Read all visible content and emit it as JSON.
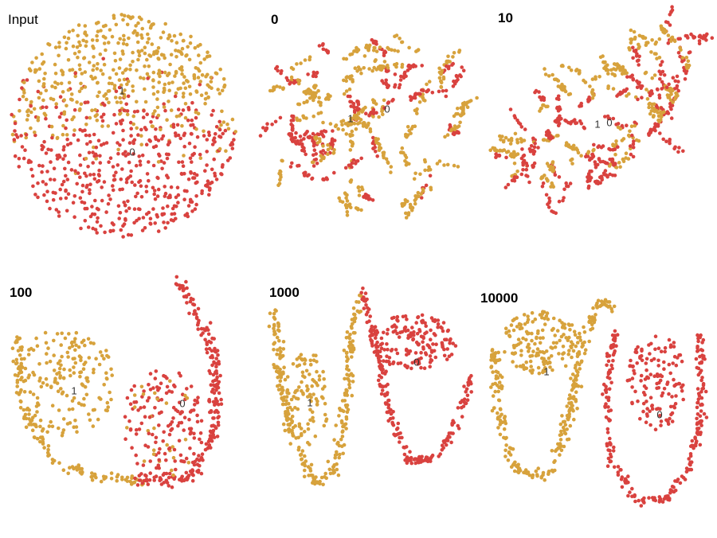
{
  "panels": [
    {
      "title": "Input",
      "labels": [
        "1",
        "0"
      ]
    },
    {
      "title": "0",
      "labels": [
        "1",
        "0"
      ]
    },
    {
      "title": "10",
      "labels": [
        "1",
        "0"
      ]
    },
    {
      "title": "100",
      "labels": [
        "1",
        "0"
      ]
    },
    {
      "title": "1000",
      "labels": [
        "1",
        "0"
      ]
    },
    {
      "title": "10000",
      "labels": [
        "1",
        "0"
      ]
    }
  ],
  "class_colors": [
    "#d9423f",
    "#d7a23c"
  ]
}
